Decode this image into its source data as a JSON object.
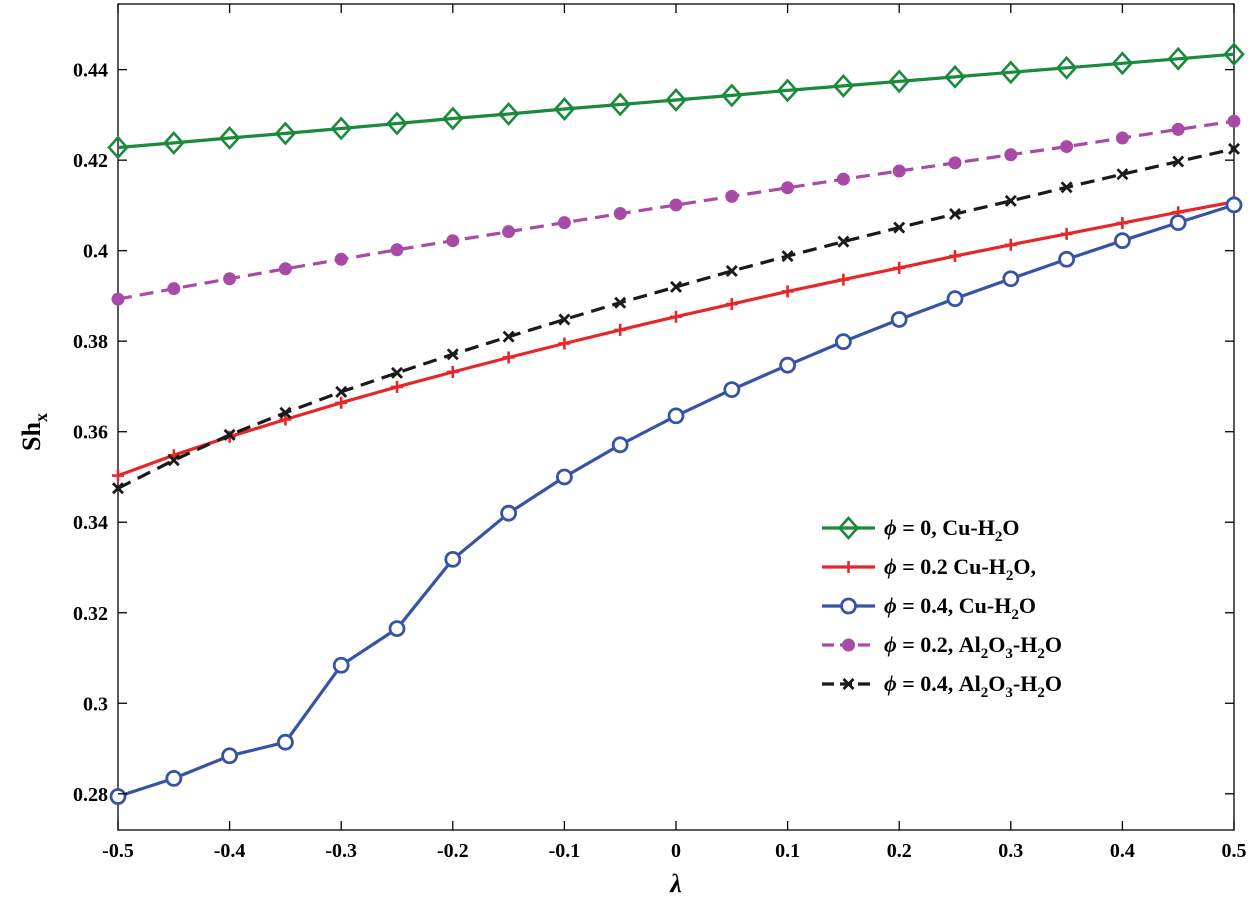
{
  "chart_data": {
    "type": "line",
    "title": "",
    "xlabel": "λ",
    "ylabel": "Sh",
    "ylabel_sub": "x",
    "xlim": [
      -0.5,
      0.5
    ],
    "ylim": [
      0.272,
      0.4545
    ],
    "x_ticks": [
      -0.5,
      -0.4,
      -0.3,
      -0.2,
      -0.1,
      0,
      0.1,
      0.2,
      0.3,
      0.4,
      0.5
    ],
    "x_tick_labels": [
      "-0.5",
      "-0.4",
      "-0.3",
      "-0.2",
      "-0.1",
      "0",
      "0.1",
      "0.2",
      "0.3",
      "0.4",
      "0.5"
    ],
    "y_ticks": [
      0.28,
      0.3,
      0.32,
      0.34,
      0.36,
      0.38,
      0.4,
      0.42,
      0.44
    ],
    "y_tick_labels": [
      "0.28",
      "0.3",
      "0.32",
      "0.34",
      "0.36",
      "0.38",
      "0.4",
      "0.42",
      "0.44"
    ],
    "grid": false,
    "legend_position": "bottom-right",
    "x": [
      -0.5,
      -0.45,
      -0.4,
      -0.35,
      -0.3,
      -0.25,
      -0.2,
      -0.15,
      -0.1,
      -0.05,
      0,
      0.05,
      0.1,
      0.15,
      0.2,
      0.25,
      0.3,
      0.35,
      0.4,
      0.45,
      0.5
    ],
    "series": [
      {
        "name": "ϕ = 0, Cu-H2O",
        "legend_parts": [
          [
            "ϕ",
            "i"
          ],
          [
            " = 0, Cu-H",
            ""
          ],
          [
            "2",
            "sub"
          ],
          [
            "O",
            ""
          ]
        ],
        "color": "#1a8a3c",
        "dash": "solid",
        "marker": "diamond",
        "values": [
          0.4228,
          0.4238,
          0.4249,
          0.4259,
          0.427,
          0.4281,
          0.4292,
          0.4302,
          0.4313,
          0.4323,
          0.4333,
          0.4343,
          0.4354,
          0.4364,
          0.4374,
          0.4384,
          0.4394,
          0.4404,
          0.4414,
          0.4424,
          0.4434
        ]
      },
      {
        "name": "ϕ = 0.2 Cu-H2O,",
        "legend_parts": [
          [
            "ϕ",
            "i"
          ],
          [
            " = 0.2 Cu-H",
            ""
          ],
          [
            "2",
            "sub"
          ],
          [
            "O,",
            ""
          ]
        ],
        "color": "#e8262a",
        "dash": "solid",
        "marker": "plus",
        "values": [
          0.3503,
          0.3548,
          0.3589,
          0.3627,
          0.3664,
          0.3699,
          0.3732,
          0.3764,
          0.3795,
          0.3825,
          0.3854,
          0.3882,
          0.391,
          0.3936,
          0.3962,
          0.3988,
          0.4013,
          0.4037,
          0.4061,
          0.4085,
          0.4108
        ]
      },
      {
        "name": "ϕ = 0.4, Cu-H2O",
        "legend_parts": [
          [
            "ϕ",
            "i"
          ],
          [
            " = 0.4, Cu-H",
            ""
          ],
          [
            "2",
            "sub"
          ],
          [
            "O",
            ""
          ]
        ],
        "color": "#3753a5",
        "dash": "solid",
        "marker": "circle",
        "values": [
          0.2794,
          0.2834,
          0.2884,
          0.2914,
          0.3084,
          0.3165,
          0.3318,
          0.342,
          0.35,
          0.3571,
          0.3635,
          0.3693,
          0.3747,
          0.3799,
          0.3848,
          0.3894,
          0.3938,
          0.3981,
          0.4022,
          0.4062,
          0.4101
        ]
      },
      {
        "name": "ϕ = 0.2, Al2O3-H2O",
        "legend_parts": [
          [
            "ϕ",
            "i"
          ],
          [
            " = 0.2, Al",
            ""
          ],
          [
            "2",
            "sub"
          ],
          [
            "O",
            ""
          ],
          [
            "3",
            "sub"
          ],
          [
            "-H",
            ""
          ],
          [
            "2",
            "sub"
          ],
          [
            "O",
            ""
          ]
        ],
        "color": "#a84ba6",
        "dash": "dashed",
        "marker": "dot",
        "values": [
          0.3893,
          0.3916,
          0.3938,
          0.396,
          0.3981,
          0.4002,
          0.4022,
          0.4042,
          0.4062,
          0.4082,
          0.4101,
          0.412,
          0.4139,
          0.4158,
          0.4176,
          0.4194,
          0.4212,
          0.423,
          0.4249,
          0.4268,
          0.4286
        ]
      },
      {
        "name": "ϕ = 0.4, Al2O3-H2O",
        "legend_parts": [
          [
            "ϕ",
            "i"
          ],
          [
            " = 0.4, Al",
            ""
          ],
          [
            "2",
            "sub"
          ],
          [
            "O",
            ""
          ],
          [
            "3",
            "sub"
          ],
          [
            "-H",
            ""
          ],
          [
            "2",
            "sub"
          ],
          [
            "O",
            ""
          ]
        ],
        "color": "#1a1a1a",
        "dash": "dashed",
        "marker": "x",
        "values": [
          0.3475,
          0.3537,
          0.3593,
          0.3642,
          0.3688,
          0.373,
          0.3771,
          0.381,
          0.3848,
          0.3885,
          0.392,
          0.3955,
          0.3988,
          0.402,
          0.4051,
          0.4081,
          0.411,
          0.414,
          0.4169,
          0.4197,
          0.4225
        ]
      }
    ]
  }
}
